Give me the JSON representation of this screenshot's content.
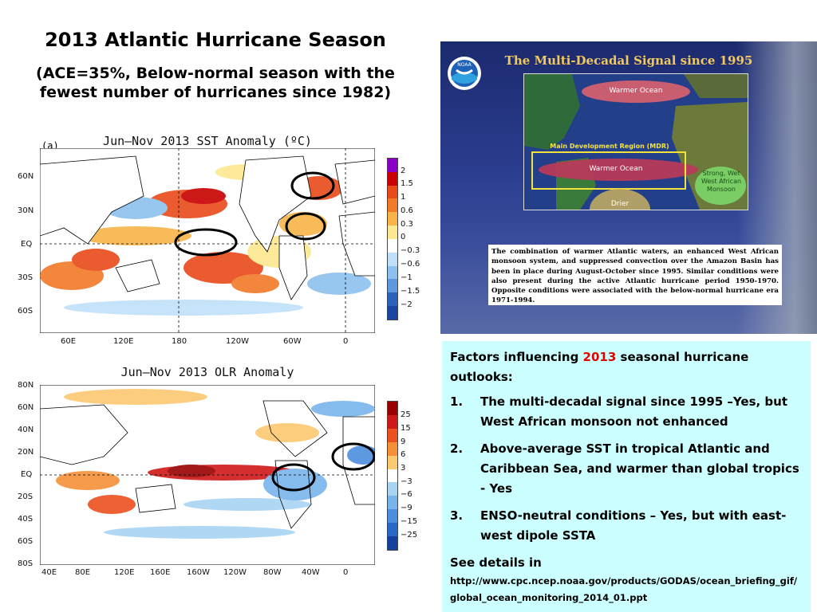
{
  "title": "2013 Atlantic Hurricane Season",
  "subtitle": "(ACE=35%, Below-normal season with the fewest number of hurricanes since 1982)",
  "sst_map": {
    "title": "Jun–Nov 2013 SST Anomaly (ºC)",
    "panel_label": "(a)",
    "lat_labels": [
      "60N",
      "30N",
      "EQ",
      "30S",
      "60S"
    ],
    "lon_labels": [
      "60E",
      "120E",
      "180",
      "120W",
      "60W",
      "0"
    ],
    "legend": [
      "2",
      "1.5",
      "1",
      "0.6",
      "0.3",
      "0",
      "−0.3",
      "−0.6",
      "−1",
      "−1.5",
      "−2"
    ],
    "legend_colors": [
      "#8a00c8",
      "#c80000",
      "#e84a1a",
      "#f07a28",
      "#f8b448",
      "#fce890",
      "#ffffff",
      "#bfe0f8",
      "#8cc0ee",
      "#5c98dc",
      "#2a64b8",
      "#1846a0"
    ]
  },
  "olr_map": {
    "title": "Jun–Nov 2013 OLR Anomaly",
    "lat_labels": [
      "80N",
      "60N",
      "40N",
      "20N",
      "EQ",
      "20S",
      "40S",
      "60S",
      "80S"
    ],
    "lon_labels": [
      "40E",
      "80E",
      "120E",
      "160E",
      "160W",
      "120W",
      "80W",
      "40W",
      "0"
    ],
    "legend": [
      "25",
      "15",
      "9",
      "6",
      "3",
      "−3",
      "−6",
      "−9",
      "−15",
      "−25"
    ],
    "legend_colors": [
      "#9a0000",
      "#d01818",
      "#ec5020",
      "#f69038",
      "#fcc870",
      "#ffffff",
      "#a8d4f4",
      "#78b4ec",
      "#4c8ede",
      "#2a68c6",
      "#1440a0"
    ]
  },
  "poster": {
    "title": "The Multi-Decadal Signal since 1995",
    "logo_text": "NOAA",
    "labels": {
      "warmer_ocean_1": "Warmer Ocean",
      "mdr": "Main Development Region (MDR)",
      "warmer_ocean_2": "Warmer Ocean",
      "monsoon": "Strong, Wet West African Monsoon",
      "drier": "Drier"
    },
    "text": "The combination of warmer Atlantic waters, an enhanced West African monsoon system, and suppressed convection over the Amazon Basin has been in place during August-October since 1995. Similar conditions were also present during the active Atlantic hurricane period 1950-1970. Opposite conditions were associated with the below-normal hurricane era 1971-1994."
  },
  "factors": {
    "heading_pre": "Factors influencing ",
    "heading_year": "2013",
    "heading_post": " seasonal hurricane outlooks:",
    "items": [
      {
        "num": "1.",
        "text": "The multi-decadal signal since 1995 –Yes, but West African monsoon not enhanced"
      },
      {
        "num": "2.",
        "text": "Above-average SST in tropical Atlantic and Caribbean Sea, and warmer than global tropics - Yes"
      },
      {
        "num": "3.",
        "text": "ENSO-neutral conditions – Yes, but with east-west dipole SSTA"
      }
    ],
    "see_details": "See details in",
    "url": "http://www.cpc.ncep.noaa.gov/products/GODAS/ocean_briefing_gif/global_ocean_monitoring_2014_01.ppt"
  },
  "colors": {
    "panel_bg": "#ccffff",
    "highlight": "#e00000",
    "poster_title": "#f3c95a"
  }
}
